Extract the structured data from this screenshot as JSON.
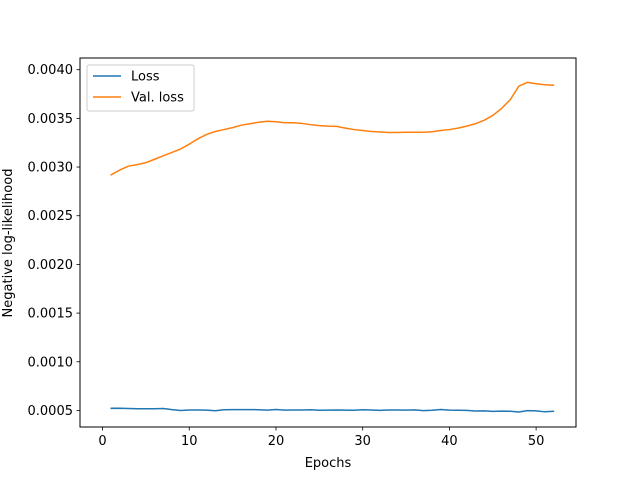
{
  "chart_data": {
    "type": "line",
    "xlabel": "Epochs",
    "ylabel": "Negative log-likelihood",
    "xlim": [
      -2.6,
      54.6
    ],
    "ylim": [
      0.00033,
      0.00412
    ],
    "xticks": [
      0,
      10,
      20,
      30,
      40,
      50
    ],
    "yticks": [
      0.0005,
      0.001,
      0.0015,
      0.002,
      0.0025,
      0.003,
      0.0035,
      0.004
    ],
    "ytick_labels": [
      "0.0005",
      "0.0010",
      "0.0015",
      "0.0020",
      "0.0025",
      "0.0030",
      "0.0035",
      "0.0040"
    ],
    "grid": false,
    "legend_position": "upper-left",
    "x": [
      1,
      2,
      3,
      4,
      5,
      6,
      7,
      8,
      9,
      10,
      11,
      12,
      13,
      14,
      15,
      16,
      17,
      18,
      19,
      20,
      21,
      22,
      23,
      24,
      25,
      26,
      27,
      28,
      29,
      30,
      31,
      32,
      33,
      34,
      35,
      36,
      37,
      38,
      39,
      40,
      41,
      42,
      43,
      44,
      45,
      46,
      47,
      48,
      49,
      50,
      51,
      52
    ],
    "series": [
      {
        "name": "Loss",
        "color": "#1f77b4",
        "values": [
          0.000522,
          0.000523,
          0.00052,
          0.000518,
          0.000517,
          0.000517,
          0.00052,
          0.000508,
          0.0005,
          0.000505,
          0.000505,
          0.000503,
          0.000497,
          0.000507,
          0.000508,
          0.000508,
          0.000509,
          0.000507,
          0.000503,
          0.00051,
          0.000503,
          0.000505,
          0.000504,
          0.000507,
          0.000502,
          0.000503,
          0.000504,
          0.000503,
          0.000502,
          0.000507,
          0.000505,
          0.000501,
          0.000505,
          0.000505,
          0.000503,
          0.000506,
          0.000498,
          0.000502,
          0.00051,
          0.000503,
          0.000502,
          0.000501,
          0.000495,
          0.000496,
          0.000491,
          0.000493,
          0.000492,
          0.000484,
          0.000498,
          0.000496,
          0.000486,
          0.000491
        ]
      },
      {
        "name": "Val. loss",
        "color": "#ff7f0e",
        "values": [
          0.00292,
          0.00297,
          0.00301,
          0.003025,
          0.003045,
          0.00308,
          0.003115,
          0.00315,
          0.003185,
          0.003235,
          0.00329,
          0.003335,
          0.003365,
          0.003385,
          0.003405,
          0.00343,
          0.003445,
          0.00346,
          0.00347,
          0.003465,
          0.003455,
          0.003455,
          0.003448,
          0.003435,
          0.003425,
          0.00342,
          0.003418,
          0.0034,
          0.003385,
          0.003375,
          0.003365,
          0.00336,
          0.003355,
          0.003355,
          0.003357,
          0.003358,
          0.003358,
          0.003362,
          0.003375,
          0.003385,
          0.0034,
          0.00342,
          0.003445,
          0.00348,
          0.00353,
          0.0036,
          0.00369,
          0.00383,
          0.00387,
          0.003855,
          0.003845,
          0.00384
        ]
      }
    ]
  }
}
